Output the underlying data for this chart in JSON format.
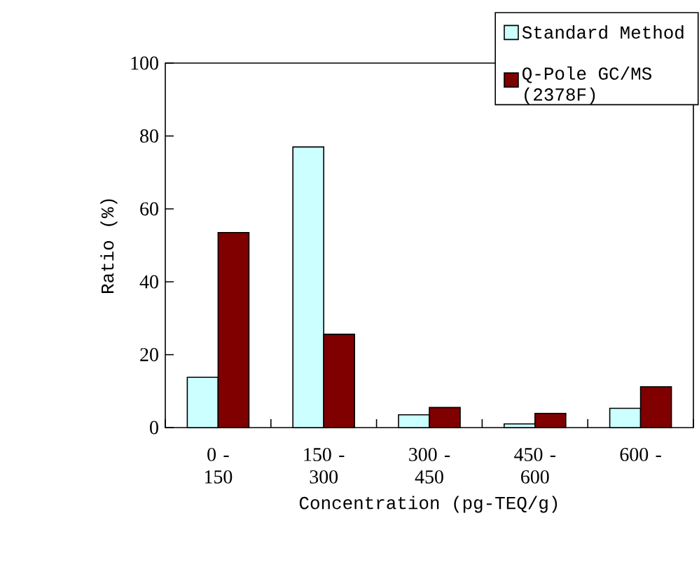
{
  "chart_data": {
    "type": "bar",
    "xlabel": "Concentration (pg-TEQ/g)",
    "ylabel": "Ratio (%)",
    "categories": [
      "0 - 150",
      "150 - 300",
      "300 - 450",
      "450 - 600",
      "600 -"
    ],
    "series": [
      {
        "name": "Standard Method",
        "color": "#ccffff",
        "values": [
          13.8,
          77,
          3.5,
          1.0,
          5.3
        ]
      },
      {
        "name": "Q-Pole GC/MS (2378F)",
        "color": "#800000",
        "values": [
          53.5,
          25.6,
          5.5,
          3.9,
          11.2
        ]
      }
    ],
    "ylim": [
      0,
      100
    ],
    "yticks": [
      0,
      20,
      40,
      60,
      80,
      100
    ],
    "legend": "top right"
  }
}
